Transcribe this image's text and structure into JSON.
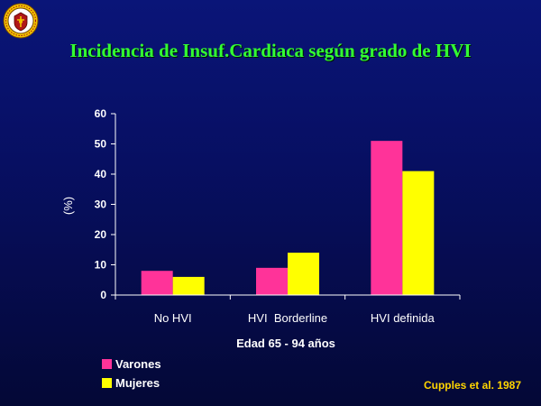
{
  "slide": {
    "title": "Incidencia de Insuf.Cardiaca según grado de HVI",
    "citation": "Cupples et al. 1987"
  },
  "colors": {
    "background": "#08106a",
    "title": "#33ff33",
    "varones": "#ff3399",
    "mujeres": "#ffff00",
    "axis": "#ffffff",
    "citation": "#ffd400"
  },
  "chart_data": {
    "type": "bar",
    "categories": [
      "No HVI",
      "HVI  Borderline",
      "HVI definida"
    ],
    "series": [
      {
        "name": "Varones",
        "values": [
          8,
          9,
          51
        ]
      },
      {
        "name": "Mujeres",
        "values": [
          6,
          14,
          41
        ]
      }
    ],
    "title": "Incidencia de Insuf.Cardiaca según grado de HVI",
    "xlabel": "Edad 65 - 94 años",
    "ylabel": "(%)",
    "ylim": [
      0,
      60
    ],
    "yticks": [
      0,
      10,
      20,
      30,
      40,
      50,
      60
    ],
    "legend": "bottom-left",
    "grid": false
  }
}
